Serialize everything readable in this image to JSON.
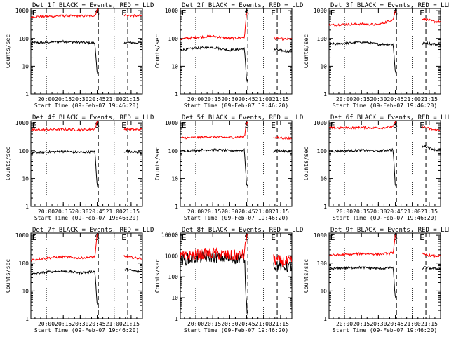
{
  "chart_data": [
    {
      "type": "line",
      "title": "Det 1f BLACK = Events, RED = LLD",
      "xlabel": "Start Time (09-Feb-07 19:46:20)",
      "ylabel": "Counts/sec",
      "xticks": [
        "20:00",
        "20:15",
        "20:30",
        "20:45",
        "21:00",
        "21:15"
      ],
      "yticks": [
        "1",
        "10",
        "100",
        "1000"
      ],
      "ylim": [
        1,
        1200
      ],
      "yscale": "log",
      "annotations": [
        "E",
        "S",
        "E"
      ],
      "series": [
        {
          "name": "Events",
          "color": "#000000",
          "values": [
            {
              "x": "19:46",
              "y": 70
            },
            {
              "x": "20:00",
              "y": 72
            },
            {
              "x": "20:15",
              "y": 78
            },
            {
              "x": "20:30",
              "y": 72
            },
            {
              "x": "20:43",
              "y": 68
            },
            {
              "x": "20:45",
              "y": 5
            },
            {
              "x": "21:10",
              "y": 72
            },
            {
              "x": "21:20",
              "y": 70
            }
          ]
        },
        {
          "name": "LLD",
          "color": "#ff0000",
          "values": [
            {
              "x": "19:46",
              "y": 600
            },
            {
              "x": "20:00",
              "y": 620
            },
            {
              "x": "20:15",
              "y": 650
            },
            {
              "x": "20:30",
              "y": 640
            },
            {
              "x": "20:43",
              "y": 660
            },
            {
              "x": "20:45",
              "y": 1100
            },
            {
              "x": "21:10",
              "y": 680
            },
            {
              "x": "21:20",
              "y": 650
            }
          ]
        }
      ]
    },
    {
      "type": "line",
      "title": "Det 2f BLACK = Events, RED = LLD",
      "xlabel": "Start Time (09-Feb-07 19:46:20)",
      "ylabel": "Counts/sec",
      "xticks": [
        "20:00",
        "20:15",
        "20:30",
        "20:45",
        "21:00",
        "21:15"
      ],
      "yticks": [
        "1",
        "10",
        "100",
        "1000"
      ],
      "ylim": [
        1,
        1200
      ],
      "yscale": "log",
      "annotations": [
        "E",
        "S",
        "E"
      ],
      "series": [
        {
          "name": "Events",
          "color": "#000000",
          "values": [
            {
              "x": "19:46",
              "y": 38
            },
            {
              "x": "20:00",
              "y": 45
            },
            {
              "x": "20:15",
              "y": 48
            },
            {
              "x": "20:30",
              "y": 38
            },
            {
              "x": "20:43",
              "y": 42
            },
            {
              "x": "20:45",
              "y": 3
            },
            {
              "x": "21:10",
              "y": 40
            },
            {
              "x": "21:20",
              "y": 35
            }
          ]
        },
        {
          "name": "LLD",
          "color": "#ff0000",
          "values": [
            {
              "x": "19:46",
              "y": 95
            },
            {
              "x": "20:00",
              "y": 110
            },
            {
              "x": "20:15",
              "y": 120
            },
            {
              "x": "20:30",
              "y": 100
            },
            {
              "x": "20:43",
              "y": 110
            },
            {
              "x": "20:45",
              "y": 900
            },
            {
              "x": "21:10",
              "y": 100
            },
            {
              "x": "21:20",
              "y": 95
            }
          ]
        }
      ]
    },
    {
      "type": "line",
      "title": "Det 3f BLACK = Events, RED = LLD",
      "xlabel": "Start Time (09-Feb-07 19:46:20)",
      "ylabel": "Counts/sec",
      "xticks": [
        "20:00",
        "20:15",
        "20:30",
        "20:45",
        "21:00",
        "21:15"
      ],
      "yticks": [
        "1",
        "10",
        "100",
        "1000"
      ],
      "ylim": [
        1,
        1200
      ],
      "yscale": "log",
      "annotations": [
        "E",
        "S",
        "E"
      ],
      "series": [
        {
          "name": "Events",
          "color": "#000000",
          "values": [
            {
              "x": "19:46",
              "y": 62
            },
            {
              "x": "20:00",
              "y": 66
            },
            {
              "x": "20:15",
              "y": 75
            },
            {
              "x": "20:30",
              "y": 62
            },
            {
              "x": "20:43",
              "y": 62
            },
            {
              "x": "20:45",
              "y": 6
            },
            {
              "x": "21:10",
              "y": 70
            },
            {
              "x": "21:20",
              "y": 62
            }
          ]
        },
        {
          "name": "LLD",
          "color": "#ff0000",
          "values": [
            {
              "x": "19:46",
              "y": 300
            },
            {
              "x": "20:00",
              "y": 320
            },
            {
              "x": "20:15",
              "y": 330
            },
            {
              "x": "20:30",
              "y": 310
            },
            {
              "x": "20:43",
              "y": 480
            },
            {
              "x": "20:45",
              "y": 1000
            },
            {
              "x": "21:10",
              "y": 500
            },
            {
              "x": "21:20",
              "y": 400
            }
          ]
        }
      ]
    },
    {
      "type": "line",
      "title": "Det 4f BLACK = Events, RED = LLD",
      "xlabel": "Start Time (09-Feb-07 19:46:20)",
      "ylabel": "Counts/sec",
      "xticks": [
        "20:00",
        "20:15",
        "20:30",
        "20:45",
        "21:00",
        "21:15"
      ],
      "yticks": [
        "1",
        "10",
        "100",
        "1000"
      ],
      "ylim": [
        1,
        1200
      ],
      "yscale": "log",
      "annotations": [
        "E",
        "S",
        "E"
      ],
      "series": [
        {
          "name": "Events",
          "color": "#000000",
          "values": [
            {
              "x": "19:46",
              "y": 85
            },
            {
              "x": "20:00",
              "y": 90
            },
            {
              "x": "20:15",
              "y": 95
            },
            {
              "x": "20:30",
              "y": 88
            },
            {
              "x": "20:43",
              "y": 92
            },
            {
              "x": "20:45",
              "y": 5
            },
            {
              "x": "21:10",
              "y": 100
            },
            {
              "x": "21:20",
              "y": 90
            }
          ]
        },
        {
          "name": "LLD",
          "color": "#ff0000",
          "values": [
            {
              "x": "19:46",
              "y": 550
            },
            {
              "x": "20:00",
              "y": 570
            },
            {
              "x": "20:15",
              "y": 600
            },
            {
              "x": "20:30",
              "y": 560
            },
            {
              "x": "20:43",
              "y": 600
            },
            {
              "x": "20:45",
              "y": 1100
            },
            {
              "x": "21:10",
              "y": 600
            },
            {
              "x": "21:20",
              "y": 580
            }
          ]
        }
      ]
    },
    {
      "type": "line",
      "title": "Det 5f BLACK = Events, RED = LLD",
      "xlabel": "Start Time (09-Feb-07 19:46:20)",
      "ylabel": "Counts/sec",
      "xticks": [
        "20:00",
        "20:15",
        "20:30",
        "20:45",
        "21:00",
        "21:15"
      ],
      "yticks": [
        "1",
        "10",
        "100",
        "1000"
      ],
      "ylim": [
        1,
        1200
      ],
      "yscale": "log",
      "annotations": [
        "E",
        "S",
        "E"
      ],
      "series": [
        {
          "name": "Events",
          "color": "#000000",
          "values": [
            {
              "x": "19:46",
              "y": 95
            },
            {
              "x": "20:00",
              "y": 105
            },
            {
              "x": "20:15",
              "y": 110
            },
            {
              "x": "20:30",
              "y": 100
            },
            {
              "x": "20:43",
              "y": 105
            },
            {
              "x": "20:45",
              "y": 5
            },
            {
              "x": "21:10",
              "y": 105
            },
            {
              "x": "21:20",
              "y": 95
            }
          ]
        },
        {
          "name": "LLD",
          "color": "#ff0000",
          "values": [
            {
              "x": "19:46",
              "y": 290
            },
            {
              "x": "20:00",
              "y": 300
            },
            {
              "x": "20:15",
              "y": 320
            },
            {
              "x": "20:30",
              "y": 300
            },
            {
              "x": "20:43",
              "y": 320
            },
            {
              "x": "20:45",
              "y": 1100
            },
            {
              "x": "21:10",
              "y": 300
            },
            {
              "x": "21:20",
              "y": 280
            }
          ]
        }
      ]
    },
    {
      "type": "line",
      "title": "Det 6f BLACK = Events, RED = LLD",
      "xlabel": "Start Time (09-Feb-07 19:46:20)",
      "ylabel": "Counts/sec",
      "xticks": [
        "20:00",
        "20:15",
        "20:30",
        "20:45",
        "21:00",
        "21:15"
      ],
      "yticks": [
        "1",
        "10",
        "100",
        "1000"
      ],
      "ylim": [
        1,
        1200
      ],
      "yscale": "log",
      "annotations": [
        "E",
        "S",
        "E"
      ],
      "series": [
        {
          "name": "Events",
          "color": "#000000",
          "values": [
            {
              "x": "19:46",
              "y": 95
            },
            {
              "x": "20:00",
              "y": 100
            },
            {
              "x": "20:15",
              "y": 105
            },
            {
              "x": "20:30",
              "y": 98
            },
            {
              "x": "20:43",
              "y": 110
            },
            {
              "x": "20:45",
              "y": 5
            },
            {
              "x": "21:10",
              "y": 150
            },
            {
              "x": "21:20",
              "y": 110
            }
          ]
        },
        {
          "name": "LLD",
          "color": "#ff0000",
          "values": [
            {
              "x": "19:46",
              "y": 650
            },
            {
              "x": "20:00",
              "y": 660
            },
            {
              "x": "20:15",
              "y": 680
            },
            {
              "x": "20:30",
              "y": 660
            },
            {
              "x": "20:43",
              "y": 720
            },
            {
              "x": "20:45",
              "y": 1100
            },
            {
              "x": "21:10",
              "y": 700
            },
            {
              "x": "21:20",
              "y": 550
            }
          ]
        }
      ]
    },
    {
      "type": "line",
      "title": "Det 7f BLACK = Events, RED = LLD",
      "xlabel": "Start Time (09-Feb-07 19:46:20)",
      "ylabel": "Counts/sec",
      "xticks": [
        "20:00",
        "20:15",
        "20:30",
        "20:45",
        "21:00",
        "21:15"
      ],
      "yticks": [
        "1",
        "10",
        "100",
        "1000"
      ],
      "ylim": [
        1,
        1200
      ],
      "yscale": "log",
      "annotations": [
        "E",
        "S",
        "E"
      ],
      "series": [
        {
          "name": "Events",
          "color": "#000000",
          "values": [
            {
              "x": "19:46",
              "y": 40
            },
            {
              "x": "20:00",
              "y": 48
            },
            {
              "x": "20:15",
              "y": 52
            },
            {
              "x": "20:30",
              "y": 45
            },
            {
              "x": "20:43",
              "y": 50
            },
            {
              "x": "20:45",
              "y": 3
            },
            {
              "x": "21:10",
              "y": 60
            },
            {
              "x": "21:20",
              "y": 50
            }
          ]
        },
        {
          "name": "LLD",
          "color": "#ff0000",
          "values": [
            {
              "x": "19:46",
              "y": 130
            },
            {
              "x": "20:00",
              "y": 150
            },
            {
              "x": "20:15",
              "y": 170
            },
            {
              "x": "20:30",
              "y": 150
            },
            {
              "x": "20:43",
              "y": 170
            },
            {
              "x": "20:45",
              "y": 1100
            },
            {
              "x": "21:10",
              "y": 170
            },
            {
              "x": "21:20",
              "y": 150
            }
          ]
        }
      ]
    },
    {
      "type": "line",
      "title": "Det 8f BLACK = Events, RED = LLD",
      "xlabel": "Start Time (09-Feb-07 19:46:20)",
      "ylabel": "Counts/sec",
      "xticks": [
        "20:00",
        "20:15",
        "20:30",
        "20:45",
        "21:00",
        "21:15"
      ],
      "yticks": [
        "1",
        "10",
        "100",
        "1000",
        "10000"
      ],
      "ylim": [
        1,
        12000
      ],
      "yscale": "log",
      "annotations": [
        "E",
        "S",
        "E"
      ],
      "series": [
        {
          "name": "Events",
          "color": "#000000",
          "values": [
            {
              "x": "19:46",
              "y": 600
            },
            {
              "x": "20:00",
              "y": 800
            },
            {
              "x": "20:15",
              "y": 900
            },
            {
              "x": "20:30",
              "y": 700
            },
            {
              "x": "20:43",
              "y": 800
            },
            {
              "x": "20:45",
              "y": 3
            },
            {
              "x": "21:05",
              "y": 400
            },
            {
              "x": "21:20",
              "y": 300
            }
          ]
        },
        {
          "name": "LLD",
          "color": "#ff0000",
          "values": [
            {
              "x": "19:46",
              "y": 900
            },
            {
              "x": "20:00",
              "y": 1100
            },
            {
              "x": "20:15",
              "y": 1300
            },
            {
              "x": "20:30",
              "y": 1000
            },
            {
              "x": "20:43",
              "y": 1100
            },
            {
              "x": "20:45",
              "y": 11000
            },
            {
              "x": "21:05",
              "y": 700
            },
            {
              "x": "21:20",
              "y": 500
            }
          ]
        }
      ]
    },
    {
      "type": "line",
      "title": "Det 9f BLACK = Events, RED = LLD",
      "xlabel": "Start Time (09-Feb-07 19:46:20)",
      "ylabel": "Counts/sec",
      "xticks": [
        "20:00",
        "20:15",
        "20:30",
        "20:45",
        "21:00",
        "21:15"
      ],
      "yticks": [
        "1",
        "10",
        "100",
        "1000"
      ],
      "ylim": [
        1,
        1200
      ],
      "yscale": "log",
      "annotations": [
        "E",
        "S",
        "E"
      ],
      "series": [
        {
          "name": "Events",
          "color": "#000000",
          "values": [
            {
              "x": "19:46",
              "y": 62
            },
            {
              "x": "20:00",
              "y": 66
            },
            {
              "x": "20:15",
              "y": 70
            },
            {
              "x": "20:30",
              "y": 64
            },
            {
              "x": "20:43",
              "y": 68
            },
            {
              "x": "20:45",
              "y": 5
            },
            {
              "x": "21:10",
              "y": 70
            },
            {
              "x": "21:20",
              "y": 62
            }
          ]
        },
        {
          "name": "LLD",
          "color": "#ff0000",
          "values": [
            {
              "x": "19:46",
              "y": 190
            },
            {
              "x": "20:00",
              "y": 200
            },
            {
              "x": "20:15",
              "y": 220
            },
            {
              "x": "20:30",
              "y": 210
            },
            {
              "x": "20:43",
              "y": 230
            },
            {
              "x": "20:45",
              "y": 1100
            },
            {
              "x": "21:10",
              "y": 200
            },
            {
              "x": "21:20",
              "y": 180
            }
          ]
        }
      ]
    }
  ]
}
